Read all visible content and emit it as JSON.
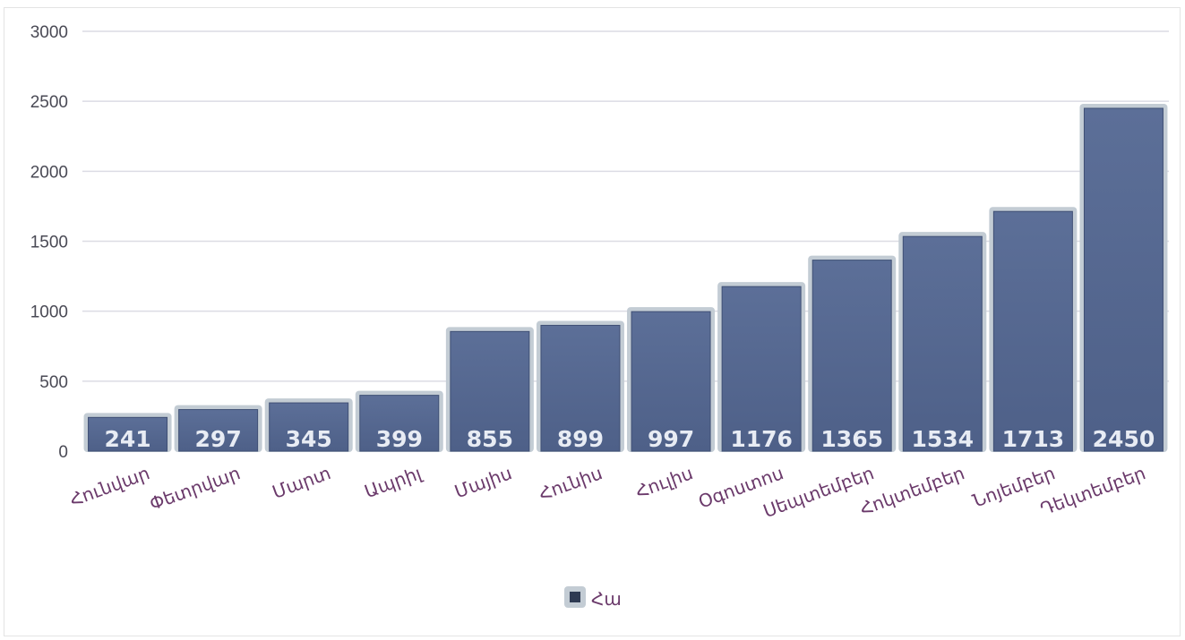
{
  "chart_data": {
    "type": "bar",
    "categories": [
      "Հունվար",
      "Փետրվար",
      "Մարտ",
      "Ապրիլ",
      "Մայիս",
      "Հունիս",
      "Հուլիս",
      "Օգոստոս",
      "Սեպտեմբեր",
      "Հոկտեմբեր",
      "Նոյեմբեր",
      "Դեկտեմբեր"
    ],
    "series": [
      {
        "name": "Հա",
        "values": [
          241,
          297,
          345,
          399,
          855,
          899,
          997,
          1176,
          1365,
          1534,
          1713,
          2450
        ]
      }
    ],
    "title": "",
    "xlabel": "",
    "ylabel": "",
    "ylim": [
      0,
      3000
    ],
    "yticks": [
      0,
      500,
      1000,
      1500,
      2000,
      2500,
      3000
    ],
    "grid": true,
    "legend_position": "bottom",
    "data_labels": true,
    "colors": {
      "bar": "#56688f",
      "bar_glow": "#c3ccd4",
      "data_label": "#e8ecf4",
      "category_label": "#6b3a6b",
      "tick_label": "#4a4a55",
      "gridline": "#dcdce4",
      "legend_marker": "#2e3a52"
    }
  }
}
